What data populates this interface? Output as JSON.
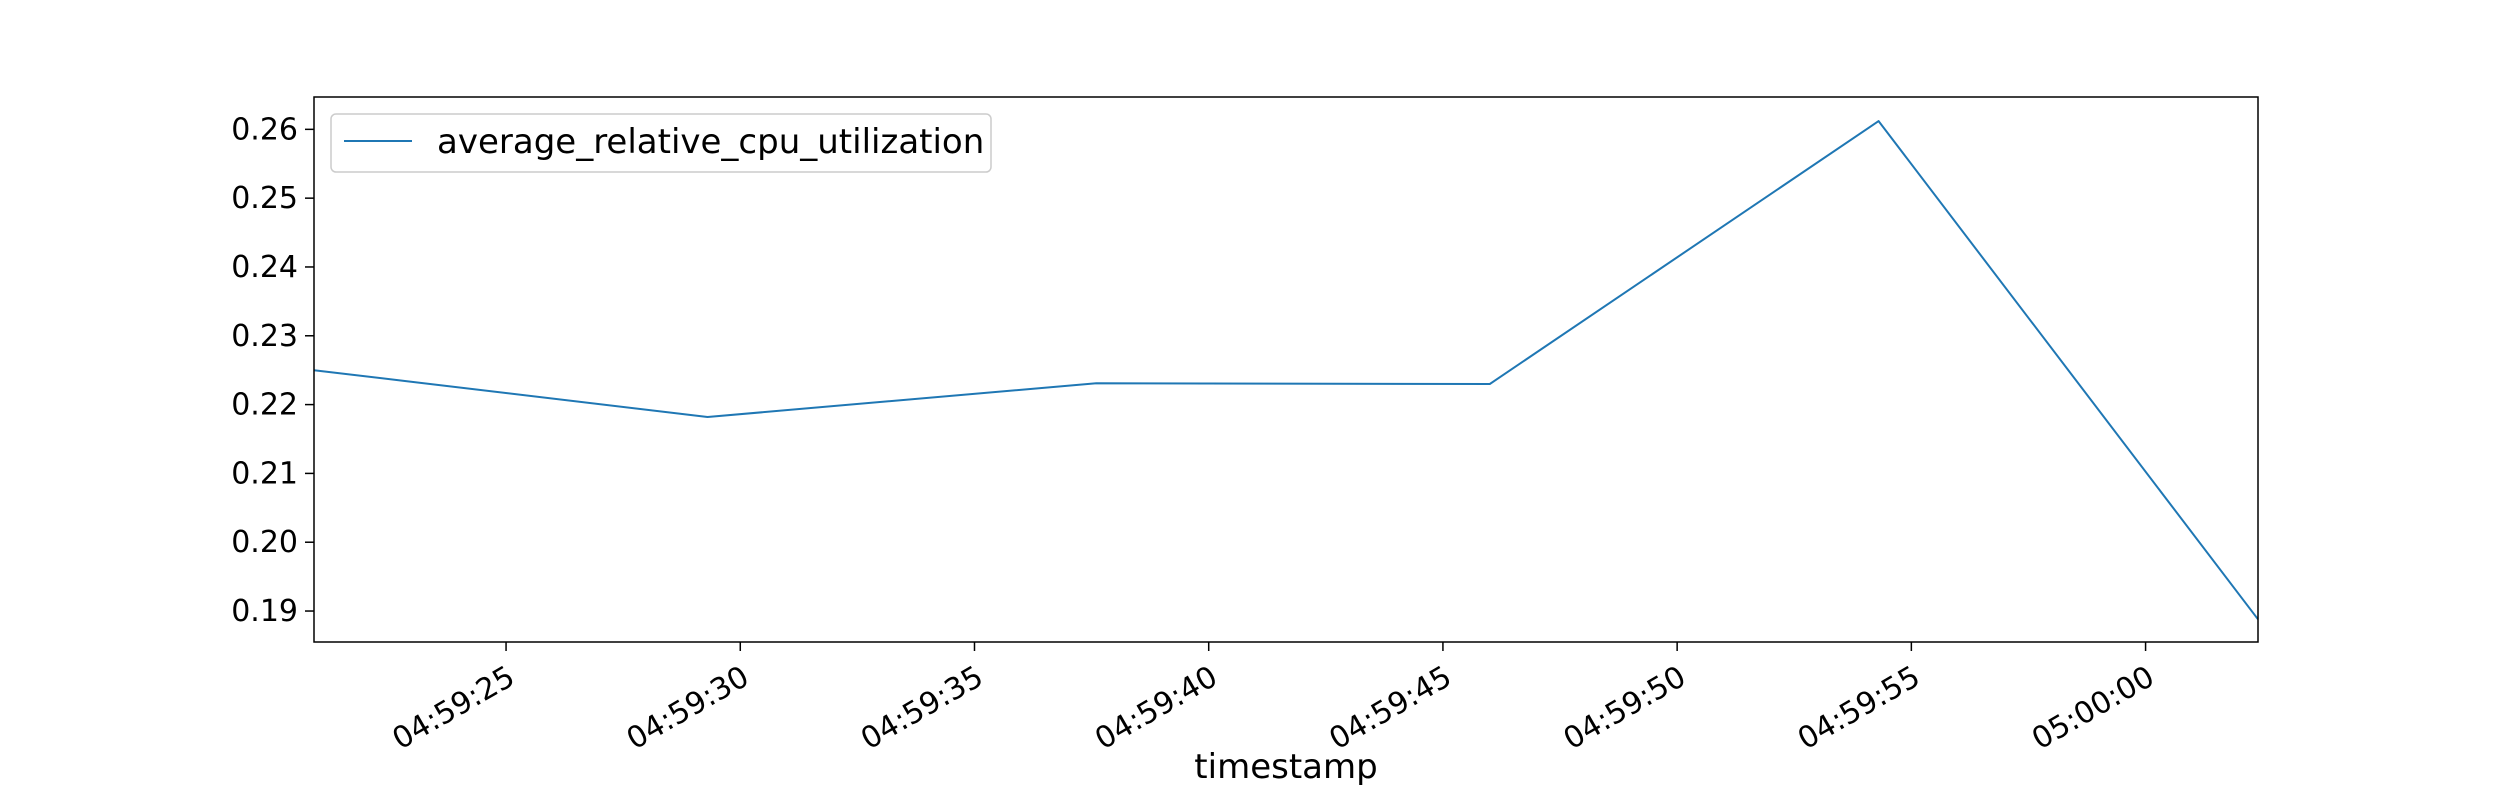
{
  "chart_data": {
    "type": "line",
    "title": "",
    "xlabel": "timestamp",
    "ylabel": "",
    "x_tick_labels": [
      "04:59:25",
      "04:59:30",
      "04:59:35",
      "04:59:40",
      "04:59:45",
      "04:59:50",
      "04:59:55",
      "05:00:00"
    ],
    "x_tick_seconds": [
      25,
      30,
      35,
      40,
      45,
      50,
      55,
      60
    ],
    "xlim_seconds": [
      20.9,
      62.4
    ],
    "y_ticks": [
      0.19,
      0.2,
      0.21,
      0.22,
      0.23,
      0.24,
      0.25,
      0.26
    ],
    "y_tick_labels": [
      "0.19",
      "0.20",
      "0.21",
      "0.22",
      "0.23",
      "0.24",
      "0.25",
      "0.26"
    ],
    "ylim": [
      0.1855,
      0.2647
    ],
    "grid": false,
    "legend_position": "top-left",
    "series": [
      {
        "name": "average_relative_cpu_utilization",
        "color": "#1f77b4",
        "x_seconds": [
          20.9,
          29.3,
          37.6,
          46.0,
          54.3,
          62.4
        ],
        "y": [
          0.225,
          0.2182,
          0.2231,
          0.223,
          0.2612,
          0.1888
        ]
      }
    ]
  }
}
